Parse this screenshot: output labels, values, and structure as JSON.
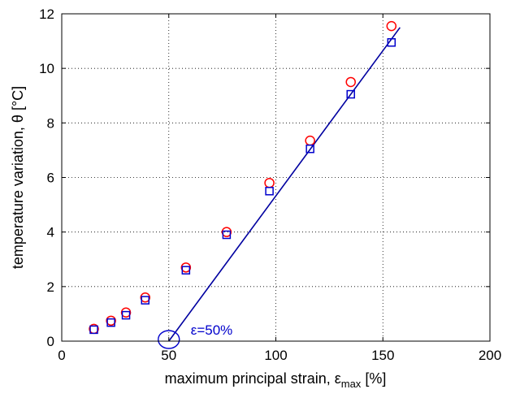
{
  "chart_data": {
    "type": "scatter",
    "title": "",
    "xlabel": "maximum principal strain, ε",
    "xlabel_subscript": "max",
    "xlabel_unit": " [%]",
    "ylabel": "temperature variation, θ [°C]",
    "xlim": [
      0,
      200
    ],
    "ylim": [
      0,
      12
    ],
    "xticks": [
      0,
      50,
      100,
      150,
      200
    ],
    "yticks": [
      0,
      2,
      4,
      6,
      8,
      10,
      12
    ],
    "grid": true,
    "series": [
      {
        "marker": "circle",
        "color": "#ff0000",
        "x": [
          15,
          23,
          30,
          39,
          58,
          77,
          97,
          116,
          135,
          154
        ],
        "y": [
          0.45,
          0.75,
          1.05,
          1.6,
          2.7,
          4.0,
          5.8,
          7.35,
          9.5,
          11.55
        ]
      },
      {
        "marker": "square",
        "color": "#0000cc",
        "x": [
          15,
          23,
          30,
          39,
          58,
          77,
          97,
          116,
          135,
          154
        ],
        "y": [
          0.42,
          0.68,
          0.95,
          1.5,
          2.6,
          3.9,
          5.5,
          7.05,
          9.05,
          10.95
        ]
      }
    ],
    "fit_line": {
      "color": "#0000a0",
      "x": [
        50,
        158
      ],
      "y": [
        0,
        11.5
      ]
    },
    "annotation": {
      "text": "ε=50%",
      "x": 50,
      "y": 0,
      "color": "#0000cc"
    }
  }
}
